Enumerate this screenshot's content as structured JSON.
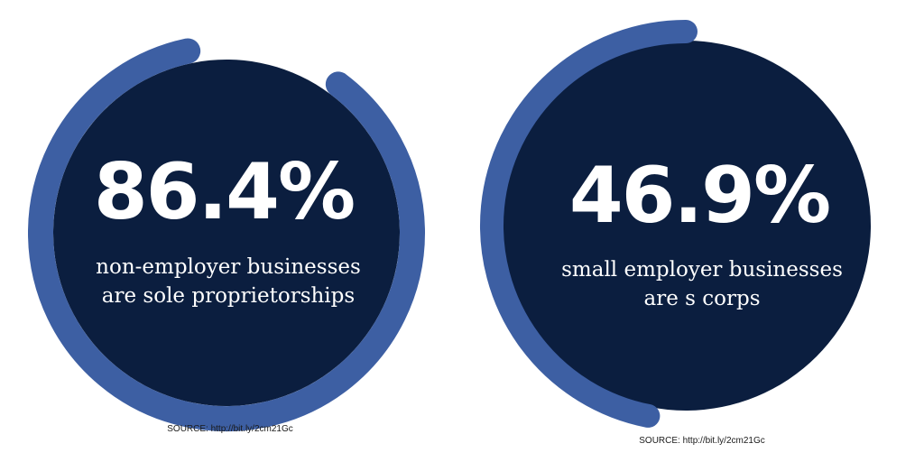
{
  "colors": {
    "circle_fill": "#0b1e3f",
    "ring_stroke": "#3d5fa3",
    "text": "#ffffff",
    "source_text": "#1a1a1a",
    "background": "#ffffff"
  },
  "chart_data": [
    {
      "type": "pie",
      "value": 86.4,
      "unit": "%",
      "label": "86.4%",
      "caption_line1": "non-employer businesses",
      "caption_line2": "are sole proprietorships",
      "source": "SOURCE: http://bit.ly/2cm21Gc"
    },
    {
      "type": "pie",
      "value": 46.9,
      "unit": "%",
      "label": "46.9%",
      "caption_line1": "small employer businesses",
      "caption_line2": "are s corps",
      "source": "SOURCE: http://bit.ly/2cm21Gc"
    }
  ]
}
